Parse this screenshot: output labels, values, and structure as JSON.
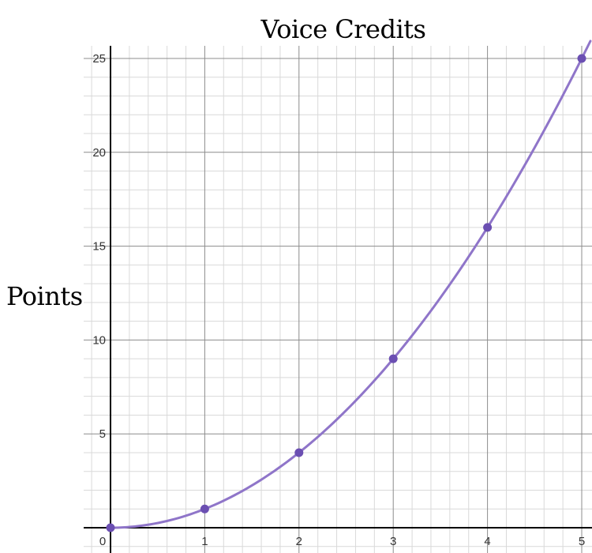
{
  "chart_data": {
    "type": "scatter",
    "title": "Voice Credits",
    "xlabel": "",
    "ylabel": "Points",
    "x": [
      0,
      1,
      2,
      3,
      4,
      5
    ],
    "y": [
      0,
      1,
      4,
      9,
      16,
      25
    ],
    "curve": "y = x^2",
    "xlim": [
      0,
      5.1
    ],
    "ylim": [
      -1.3,
      25.7
    ],
    "x_ticks": [
      "0",
      "1",
      "2",
      "3",
      "4",
      "5"
    ],
    "y_ticks": [
      "5",
      "10",
      "15",
      "20",
      "25"
    ],
    "grid": true,
    "series_color": "#8f75c9",
    "point_color": "#6b4fb2",
    "axis_color": "#000000",
    "major_grid_color": "#8c8c8c",
    "minor_grid_color": "#d9d9d9"
  }
}
